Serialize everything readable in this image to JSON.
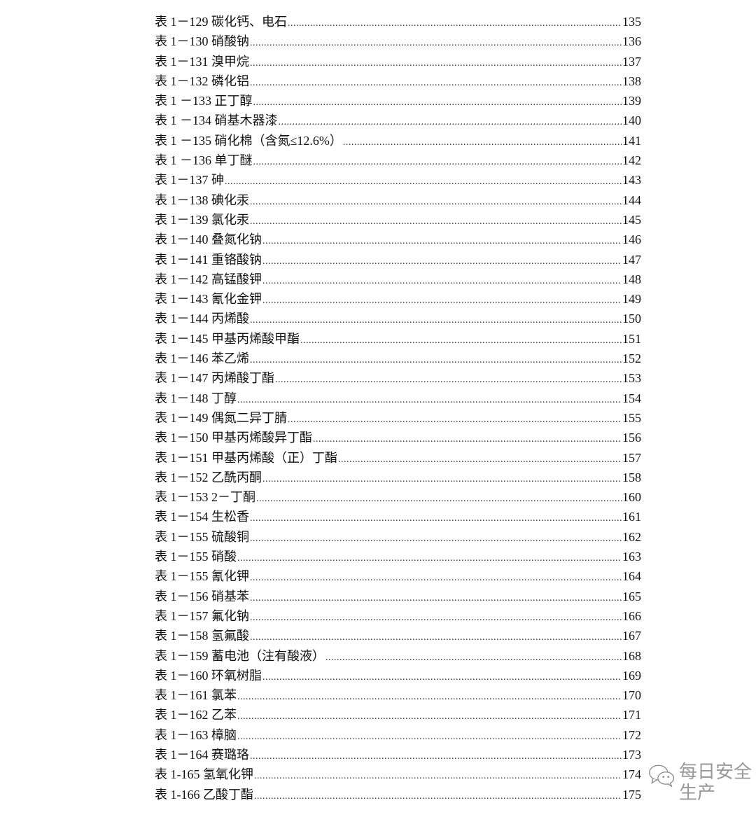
{
  "entries": [
    {
      "label": "表 1－129  碳化钙、电石",
      "page": "135"
    },
    {
      "label": "表 1－130  硝酸钠",
      "page": "136"
    },
    {
      "label": "表 1－131  溴甲烷",
      "page": "137"
    },
    {
      "label": "表 1－132  磷化铝",
      "page": "138"
    },
    {
      "label": "表 1 －133  正丁醇",
      "page": "139"
    },
    {
      "label": "表 1 －134  硝基木器漆",
      "page": "140"
    },
    {
      "label": "表 1 －135  硝化棉（含氮≤12.6%）",
      "page": "141"
    },
    {
      "label": "表 1 －136  单丁醚",
      "page": "142"
    },
    {
      "label": "表 1－137  砷",
      "page": "143"
    },
    {
      "label": "表 1－138  碘化汞",
      "page": "144"
    },
    {
      "label": "表 1－139  氯化汞",
      "page": "145"
    },
    {
      "label": "表 1－140  叠氮化钠",
      "page": "146"
    },
    {
      "label": "表 1－141  重铬酸钠",
      "page": "147"
    },
    {
      "label": "表 1－142  高锰酸钾",
      "page": "148"
    },
    {
      "label": "表 1－143  氰化金钾",
      "page": "149"
    },
    {
      "label": "表 1－144 丙烯酸",
      "page": "150"
    },
    {
      "label": "表 1－145 甲基丙烯酸甲酯",
      "page": "151"
    },
    {
      "label": "表 1－146 苯乙烯",
      "page": "152"
    },
    {
      "label": "表 1－147 丙烯酸丁酯",
      "page": "153"
    },
    {
      "label": "表 1－148 丁醇",
      "page": "154"
    },
    {
      "label": "表 1－149 偶氮二异丁腈",
      "page": "155"
    },
    {
      "label": "表 1－150 甲基丙烯酸异丁酯",
      "page": "156"
    },
    {
      "label": "表 1－151  甲基丙烯酸（正）丁酯",
      "page": "157"
    },
    {
      "label": "表 1－152  乙酰丙酮",
      "page": "158"
    },
    {
      "label": "表 1－153 2－丁酮",
      "page": "160"
    },
    {
      "label": "表 1－154  生松香",
      "page": "161"
    },
    {
      "label": "表 1－155  硫酸铜",
      "page": "162"
    },
    {
      "label": "表 1－155  硝酸",
      "page": "163"
    },
    {
      "label": "表 1－155  氰化钾",
      "page": "164"
    },
    {
      "label": "表 1－156 硝基苯",
      "page": "165"
    },
    {
      "label": "表 1－157  氟化钠",
      "page": "166"
    },
    {
      "label": "表 1－158  氢氟酸",
      "page": "167"
    },
    {
      "label": "表 1－159 蓄电池（注有酸液）",
      "page": "168"
    },
    {
      "label": "表 1－160  环氧树脂",
      "page": "169"
    },
    {
      "label": "表 1－161  氯苯",
      "page": "170"
    },
    {
      "label": "表 1－162  乙苯",
      "page": "171"
    },
    {
      "label": "表 1－163  樟脑",
      "page": "172"
    },
    {
      "label": "表 1－164  赛璐珞",
      "page": "173"
    },
    {
      "label": "表 1-165  氢氧化钾 ",
      "page": "174"
    },
    {
      "label": "表 1-166  乙酸丁酯 ",
      "page": "175"
    }
  ],
  "watermark": {
    "text": "每日安全生产",
    "icon": "wechat-icon"
  }
}
